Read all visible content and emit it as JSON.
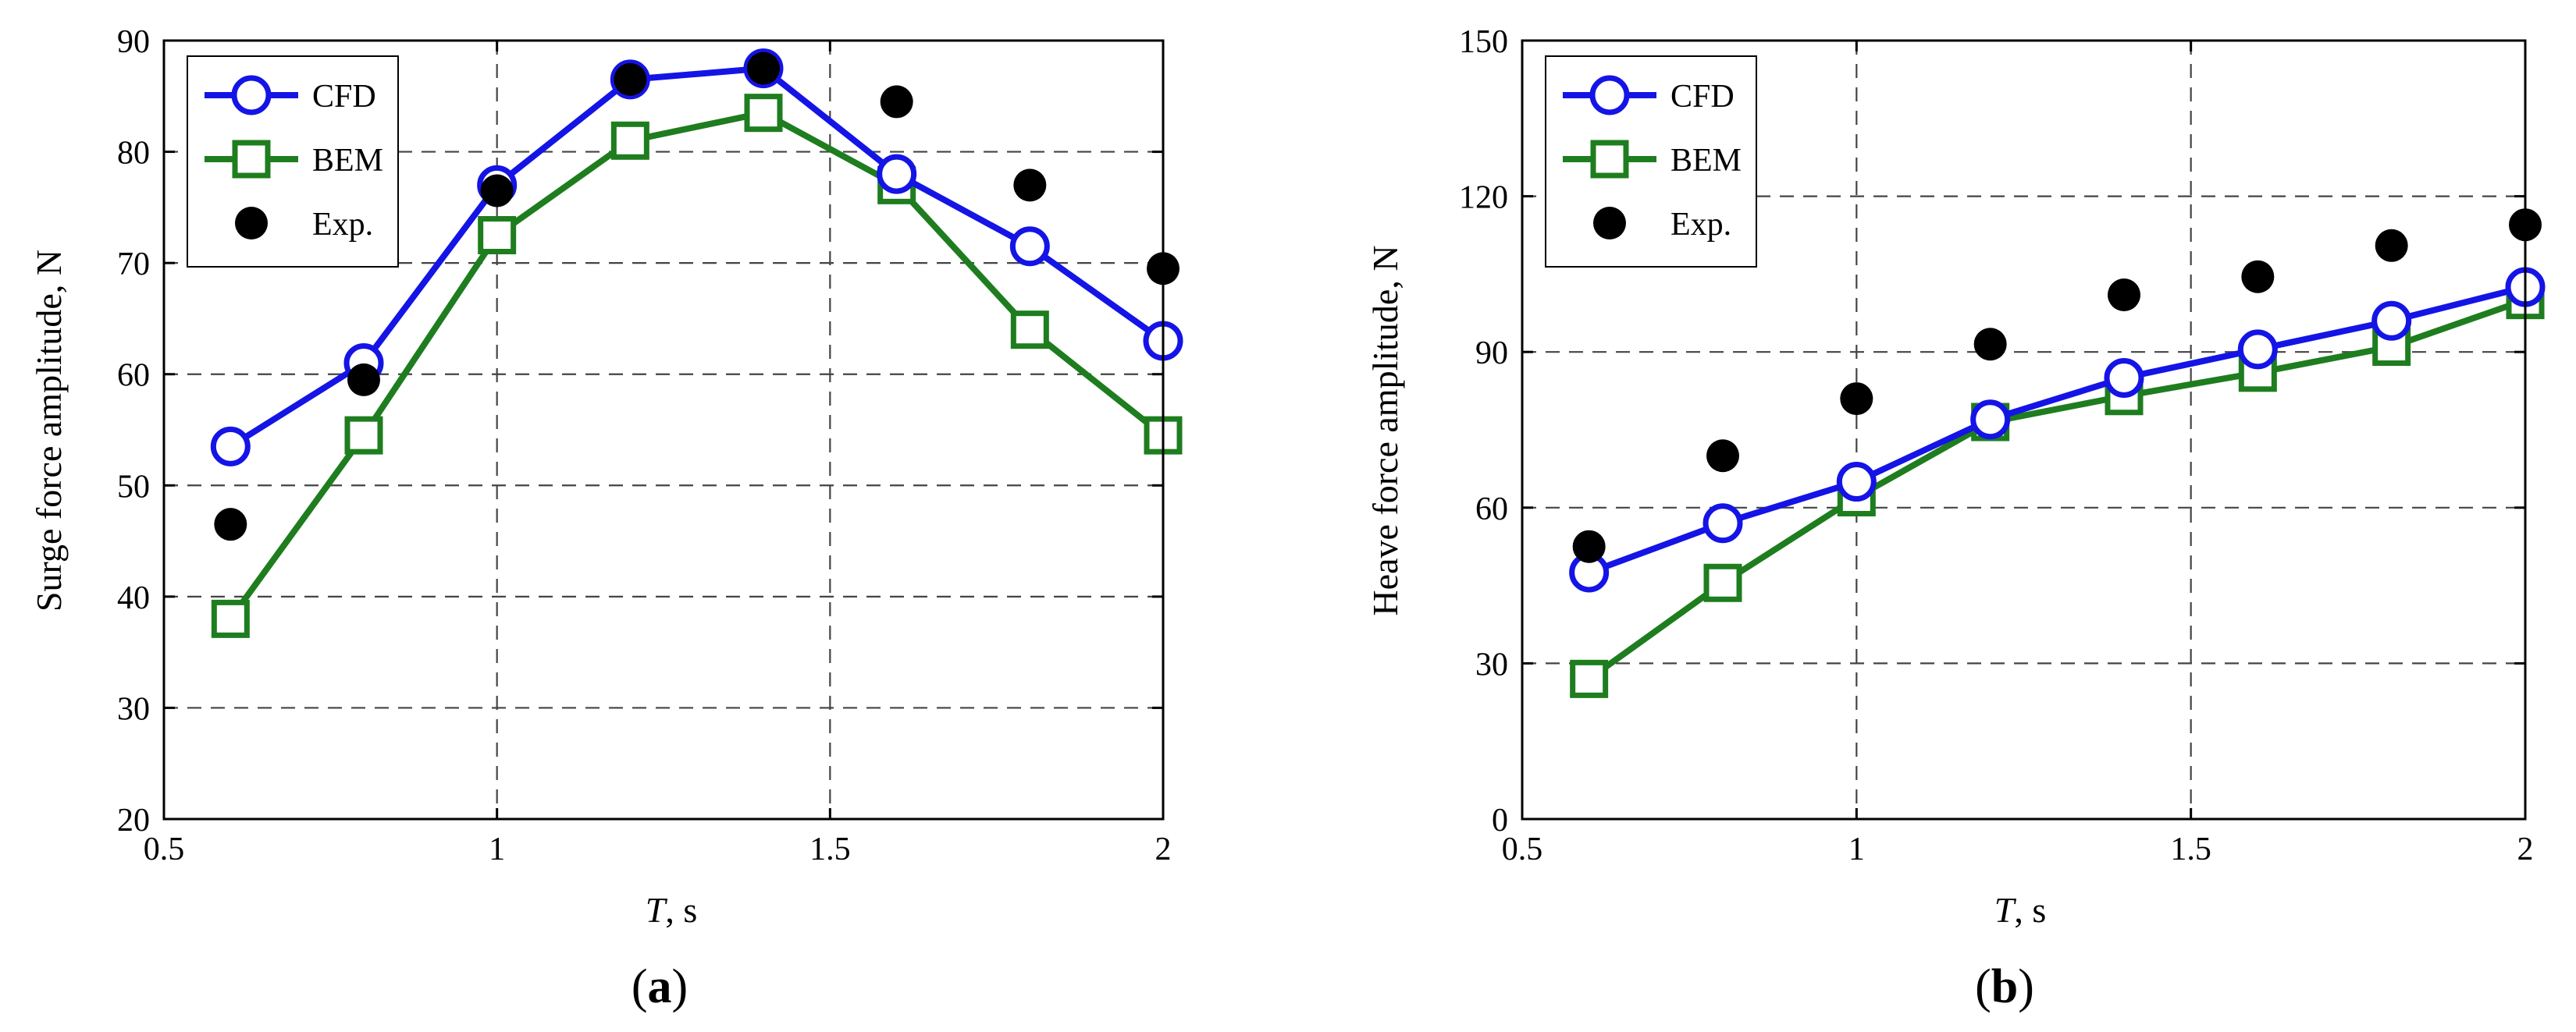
{
  "colors": {
    "cfd": "#1414e6",
    "bem": "#1e7d1e",
    "exp": "#000000",
    "grid": "#444444"
  },
  "chart_data": [
    {
      "id": "a",
      "type": "line",
      "panel_label": {
        "open": "(",
        "letter": "a",
        "close": ")"
      },
      "xlabel": {
        "var": "T",
        "unit": ", s"
      },
      "ylabel": "Surge force amplitude, N",
      "xlim": [
        0.5,
        2
      ],
      "ylim": [
        20,
        90
      ],
      "xticks": [
        0.5,
        1,
        1.5,
        2
      ],
      "xtick_labels": [
        "0.5",
        "1",
        "1.5",
        "2"
      ],
      "yticks": [
        20,
        30,
        40,
        50,
        60,
        70,
        80,
        90
      ],
      "ytick_labels": [
        "20",
        "30",
        "40",
        "50",
        "60",
        "70",
        "80",
        "90"
      ],
      "grid": true,
      "legend_position": "top-left",
      "x": [
        0.6,
        0.8,
        1.0,
        1.2,
        1.4,
        1.6,
        1.8,
        2.0
      ],
      "series": [
        {
          "name": "CFD",
          "marker": "circle",
          "values": [
            53.5,
            61,
            77,
            86.5,
            87.5,
            78,
            71.5,
            63
          ]
        },
        {
          "name": "BEM",
          "marker": "square",
          "values": [
            38,
            54.5,
            72.5,
            81,
            83.5,
            77,
            64,
            54.5
          ]
        },
        {
          "name": "Exp.",
          "marker": "dot",
          "values": [
            46.5,
            59.5,
            76.5,
            86.5,
            87.5,
            84.5,
            77,
            69.5
          ]
        }
      ]
    },
    {
      "id": "b",
      "type": "line",
      "panel_label": {
        "open": "(",
        "letter": "b",
        "close": ")"
      },
      "xlabel": {
        "var": "T",
        "unit": ", s"
      },
      "ylabel": "Heave force amplitude, N",
      "xlim": [
        0.5,
        2
      ],
      "ylim": [
        0,
        150
      ],
      "xticks": [
        0.5,
        1,
        1.5,
        2
      ],
      "xtick_labels": [
        "0.5",
        "1",
        "1.5",
        "2"
      ],
      "yticks": [
        0,
        30,
        60,
        90,
        120,
        150
      ],
      "ytick_labels": [
        "0",
        "30",
        "60",
        "90",
        "120",
        "150"
      ],
      "grid": true,
      "legend_position": "top-left",
      "x": [
        0.6,
        0.8,
        1.0,
        1.2,
        1.4,
        1.6,
        1.8,
        2.0
      ],
      "series": [
        {
          "name": "CFD",
          "marker": "circle",
          "values": [
            47.5,
            57,
            65,
            77,
            85,
            90.5,
            96,
            102.5
          ]
        },
        {
          "name": "BEM",
          "marker": "square",
          "values": [
            27,
            45.5,
            62,
            76.5,
            81.5,
            86,
            91,
            100
          ]
        },
        {
          "name": "Exp.",
          "marker": "dot",
          "values": [
            52.5,
            70,
            81,
            91.5,
            101,
            104.5,
            110.5,
            114.5
          ]
        }
      ]
    }
  ]
}
